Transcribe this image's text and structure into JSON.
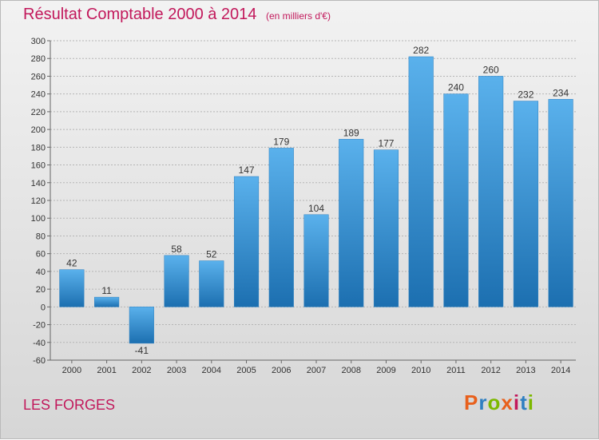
{
  "header": {
    "title": "Résultat Comptable 2000 à 2014",
    "unit": "(en milliers d'€)"
  },
  "footer": {
    "place": "LES FORGES",
    "logo_text": "Proxiti",
    "logo_colors": [
      "#e8601c",
      "#2e7fc1",
      "#7cb800",
      "#e8601c",
      "#c2185b",
      "#2e7fc1",
      "#7cb800"
    ]
  },
  "colors": {
    "bar_light": "#5ab1ec",
    "bar_dark": "#1c6fb0",
    "title": "#c2185b",
    "grid": "#b5b5b5"
  },
  "chart_data": {
    "type": "bar",
    "categories": [
      "2000",
      "2001",
      "2002",
      "2003",
      "2004",
      "2005",
      "2006",
      "2007",
      "2008",
      "2009",
      "2010",
      "2011",
      "2012",
      "2013",
      "2014"
    ],
    "values": [
      42,
      11,
      -41,
      58,
      52,
      147,
      179,
      104,
      189,
      177,
      282,
      240,
      260,
      232,
      234
    ],
    "ylim": [
      -60,
      300
    ],
    "yticks": [
      -60,
      -40,
      -20,
      0,
      20,
      40,
      60,
      80,
      100,
      120,
      140,
      160,
      180,
      200,
      220,
      240,
      260,
      280,
      300
    ],
    "grid": "horizontal dashed",
    "legend": "none",
    "data_labels": true
  }
}
